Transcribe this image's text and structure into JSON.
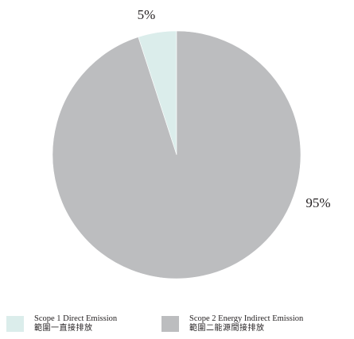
{
  "chart_data": {
    "type": "pie",
    "slices": [
      {
        "name_en": "Scope 1 Direct Emission",
        "name_zh": "範圍一直接排放",
        "value": 5,
        "label": "5%",
        "color": "#dbedeb"
      },
      {
        "name_en": "Scope 2 Energy Indirect Emission",
        "name_zh": "範圍二能源間接排放",
        "value": 95,
        "label": "95%",
        "color": "#bcbdbf"
      }
    ],
    "legend_position": "bottom"
  }
}
